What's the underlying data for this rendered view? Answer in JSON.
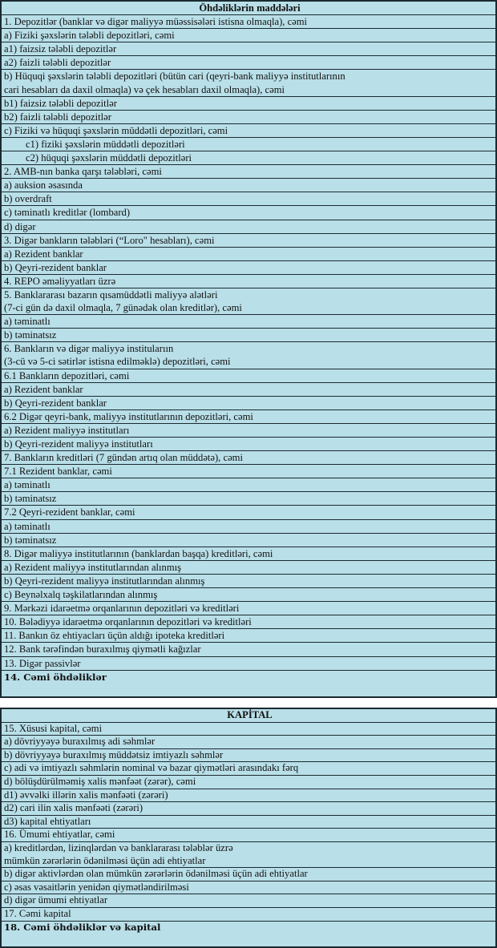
{
  "liabilities": {
    "title": "Öhdəliklərin maddələri",
    "rows": [
      {
        "lines": [
          "1. Depozitlər (banklar və digər maliyyə müəssisələri istisna olmaqla), cəmi"
        ]
      },
      {
        "lines": [
          "a)  Fiziki şəxslərin tələbli depozitləri, cəmi"
        ]
      },
      {
        "lines": [
          "a1) faizsiz tələbli depozitlər"
        ]
      },
      {
        "lines": [
          "a2) faizli tələbli depozitlər"
        ]
      },
      {
        "lines": [
          "b) Hüquqi şəxslərin tələbli depozitləri (bütün cari (qeyri-bank maliyyə institutlarının",
          "cari hesabları da daxil olmaqla) və çek hesabları  daxil olmaqla), cəmi"
        ]
      },
      {
        "lines": [
          "b1) faizsiz tələbli depozitlər"
        ]
      },
      {
        "lines": [
          "b2) faizli tələbli depozitlər"
        ]
      },
      {
        "lines": [
          "c) Fiziki və hüquqi şəxslərin müddətli depozitləri, cəmi"
        ]
      },
      {
        "lines": [
          "c1) fiziki şəxslərin müddətli depozitləri"
        ],
        "indent": true
      },
      {
        "lines": [
          "c2) hüquqi şəxslərin müddətli depozitləri"
        ],
        "indent": true
      },
      {
        "lines": [
          "2. AMB-nın banka qarşı tələbləri, cəmi"
        ]
      },
      {
        "lines": [
          "a) auksion əsasında"
        ]
      },
      {
        "lines": [
          "b) overdraft"
        ]
      },
      {
        "lines": [
          "c) təminatlı kreditlər (lombard)"
        ]
      },
      {
        "lines": [
          "d) digər"
        ]
      },
      {
        "lines": [
          "3. Digər bankların tələbləri (“Loro\" hesabları), cəmi"
        ]
      },
      {
        "lines": [
          "a) Rezident banklar"
        ]
      },
      {
        "lines": [
          "b) Qeyri-rezident banklar"
        ]
      },
      {
        "lines": [
          "4. REPO əməliyyatları  üzrə"
        ]
      },
      {
        "lines": [
          "5. Banklararası bazarın qısamüddətli maliyyə alətləri",
          " (7-ci gün də daxil olmaqla, 7 günədək olan kreditlər), cəmi"
        ]
      },
      {
        "lines": [
          "a) təminatlı"
        ]
      },
      {
        "lines": [
          "b) təminatsız"
        ]
      },
      {
        "lines": [
          "6. Bankların və digər maliyyə institularıın",
          " (3-cü və 5-ci sətirlər istisna edilməklə) depozitləri, cəmi"
        ]
      },
      {
        "lines": [
          "6.1  Bankların depozitləri, cəmi"
        ]
      },
      {
        "lines": [
          "a) Rezident banklar"
        ]
      },
      {
        "lines": [
          "b) Qeyri-rezident banklar"
        ]
      },
      {
        "lines": [
          "6.2 Digər qeyri-bank, maliyyə institutlarının depozitləri, cəmi"
        ]
      },
      {
        "lines": [
          "a) Rezident maliyyə institutları"
        ]
      },
      {
        "lines": [
          "b) Qeyri-rezident maliyyə institutları"
        ]
      },
      {
        "lines": [
          "7. Bankların kreditləri (7 gündən artıq olan müddətə), cəmi"
        ]
      },
      {
        "lines": [
          "7.1 Rezident banklar, cəmi"
        ]
      },
      {
        "lines": [
          "a) təminatlı"
        ]
      },
      {
        "lines": [
          "b) təminatsız"
        ]
      },
      {
        "lines": [
          "7.2 Qeyri-rezident banklar, cəmi"
        ]
      },
      {
        "lines": [
          "a) təminatlı"
        ]
      },
      {
        "lines": [
          "b) təminatsız"
        ]
      },
      {
        "lines": [
          "8. Digər maliyyə institutlarının (banklardan başqa) kreditləri, cəmi"
        ]
      },
      {
        "lines": [
          "a) Rezident maliyyə institutlarından alınmış"
        ]
      },
      {
        "lines": [
          "b) Qeyri-rezident maliyyə institutlarından alınmış"
        ]
      },
      {
        "lines": [
          "c) Beynəlxalq təşkilatlarından alınmış"
        ]
      },
      {
        "lines": [
          "9. Mərkəzi idarəetmə orqanlarının depozitləri və kreditləri"
        ]
      },
      {
        "lines": [
          "10. Bələdiyyə idarəetmə orqanlarının depozitləri və kreditləri"
        ]
      },
      {
        "lines": [
          "11. Bankın öz ehtiyacları üçün aldığı ipoteka kreditləri"
        ]
      },
      {
        "lines": [
          "12. Bank tərəfindən buraxılmış qiymətli kağızlar"
        ]
      },
      {
        "lines": [
          "13. Digər passivlər"
        ]
      },
      {
        "lines": [
          "14. Cəmi öhdəliklər"
        ],
        "bold": true
      }
    ]
  },
  "capital": {
    "title": "KAPİTAL",
    "rows": [
      {
        "lines": [
          "15. Xüsusi kapital, cəmi"
        ]
      },
      {
        "lines": [
          "a) dövriyyəyə buraxılmış adi səhmlər"
        ]
      },
      {
        "lines": [
          "b) dövriyyəyə buraxılmış müddətsiz imtiyazlı səhmlər"
        ]
      },
      {
        "lines": [
          "c) adi və imtiyazlı səhmlərin nominal və bazar qiymətləri arasındakı fərq"
        ]
      },
      {
        "lines": [
          "d) bölüşdürülməmiş xalis mənfəət (zərər), cəmi"
        ]
      },
      {
        "lines": [
          "d1) əvvəlki illərin xalis mənfəəti (zərəri)"
        ]
      },
      {
        "lines": [
          "d2) cari ilin xalis mənfəəti (zərəri)"
        ]
      },
      {
        "lines": [
          "d3) kapital ehtiyatları"
        ]
      },
      {
        "lines": [
          "16. Ümumi ehtiyatlar, cəmi"
        ]
      },
      {
        "lines": [
          "a) kreditlərdən, lizinqlərdən və banklararası  tələblər üzrə",
          "mümkün zərərlərin ödənilməsi üçün adi ehtiyatlar"
        ]
      },
      {
        "lines": [
          "b) digər aktivlərdən olan mümkün zərərlərin ödənilməsi üçün adi ehtiyatlar"
        ]
      },
      {
        "lines": [
          "c) əsas vəsaitlərin yenidən qiymətləndirilməsi"
        ]
      },
      {
        "lines": [
          "d) digər ümumi ehtiyatlar"
        ]
      },
      {
        "lines": [
          "17. Cəmi kapital"
        ]
      },
      {
        "lines": [
          "18. Cəmi öhdəliklər və kapital"
        ],
        "bold": true
      }
    ]
  },
  "colors": {
    "cell_background": "#b9dfe8",
    "border": "#1a2a30"
  }
}
